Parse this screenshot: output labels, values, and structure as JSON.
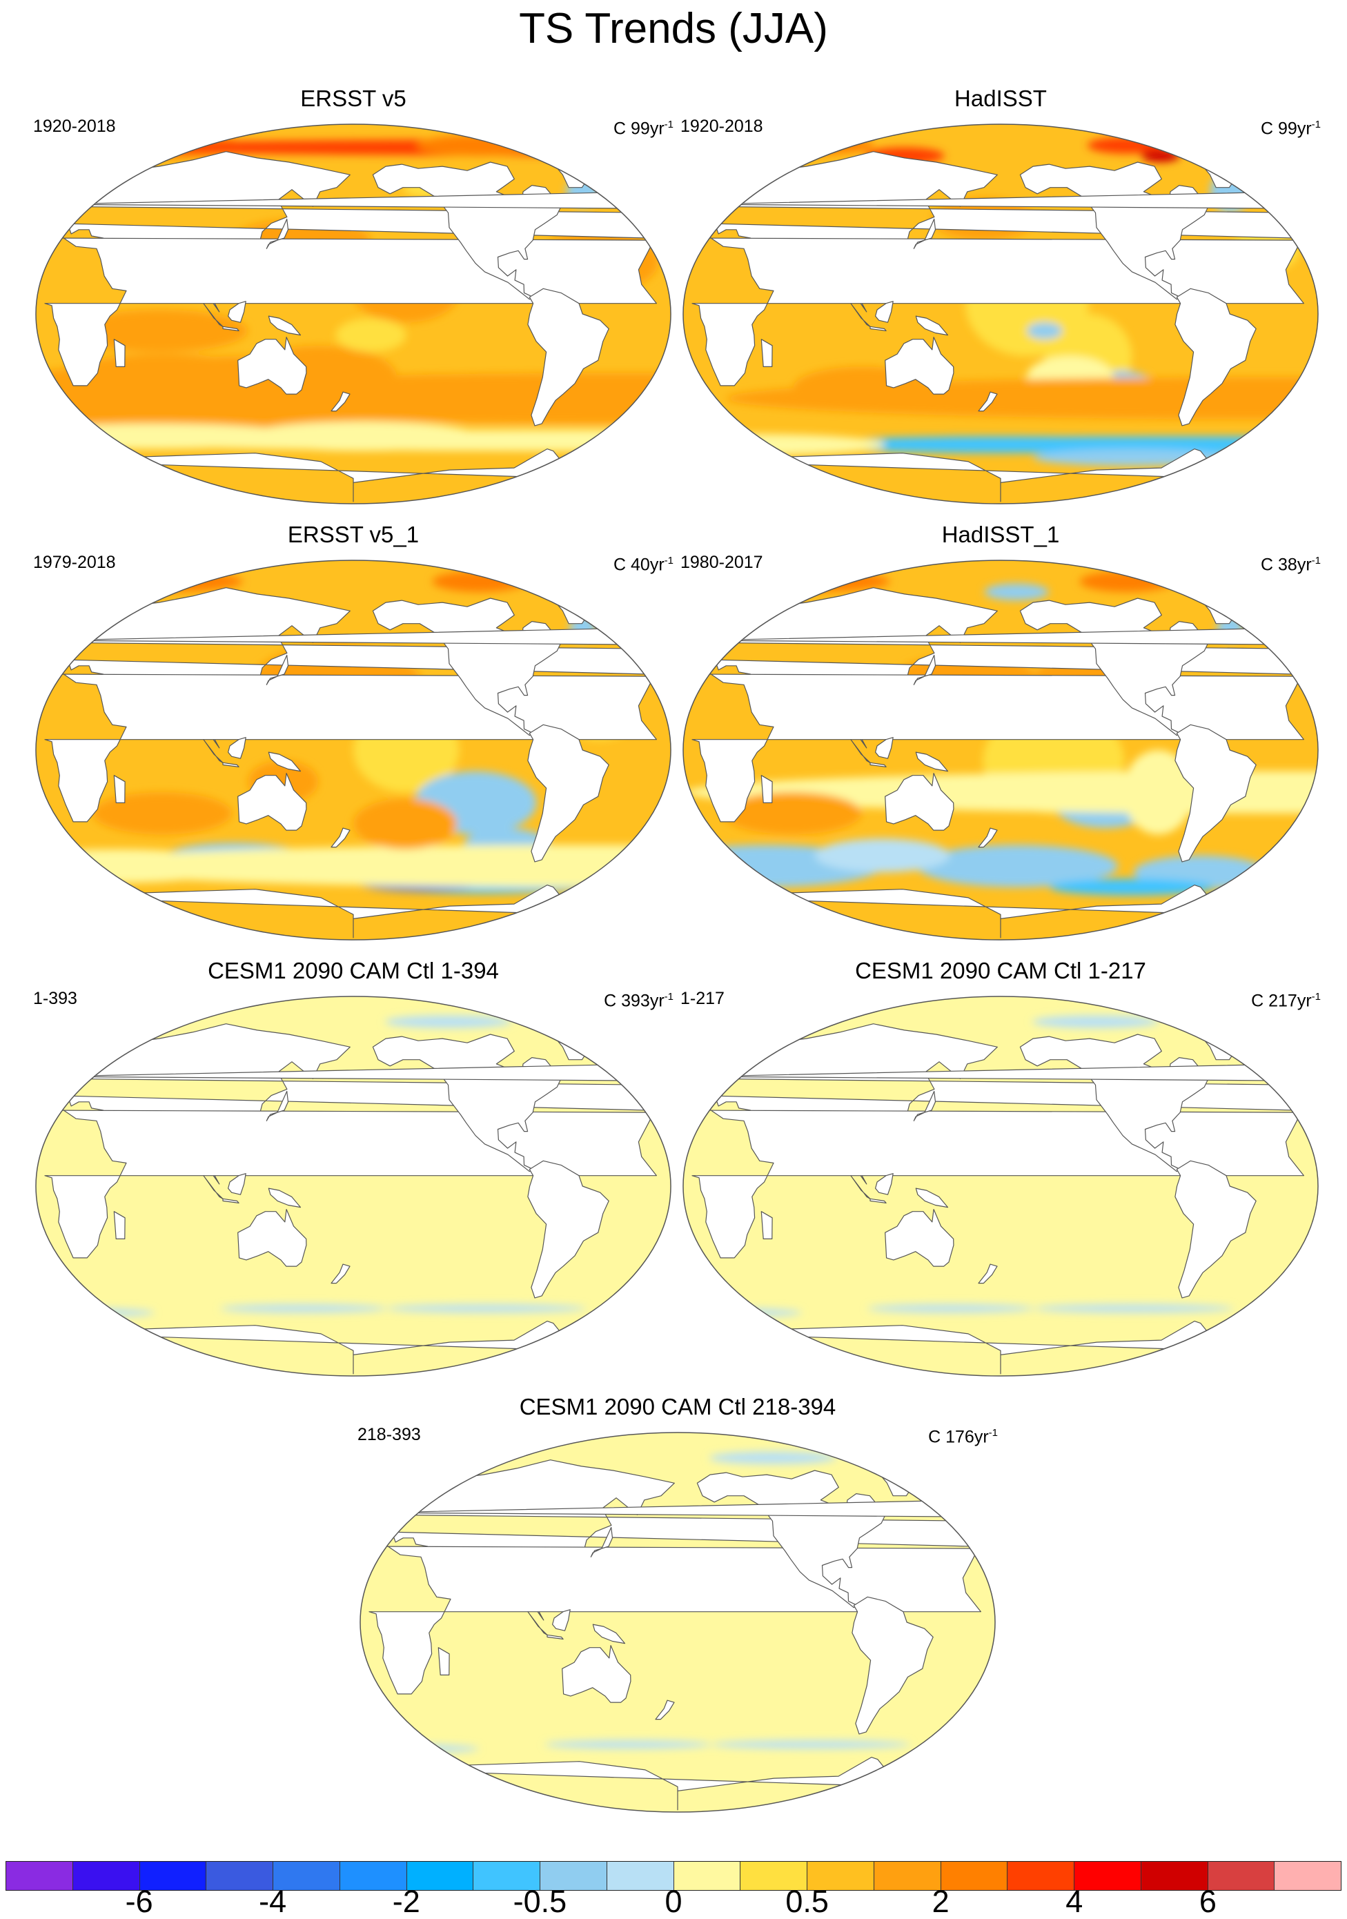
{
  "title": "TS Trends (JJA)",
  "panels": [
    {
      "title": "ERSST v5",
      "period": "1920-2018",
      "units_prefix": "C",
      "years": "99yr",
      "sup": "-1",
      "field": "ersst_full"
    },
    {
      "title": "HadISST",
      "period": "1920-2018",
      "units_prefix": "C",
      "years": "99yr",
      "sup": "-1",
      "field": "hadisst_full"
    },
    {
      "title": "ERSST v5_1",
      "period": "1979-2018",
      "units_prefix": "C",
      "years": "40yr",
      "sup": "-1",
      "field": "ersst_recent"
    },
    {
      "title": "HadISST_1",
      "period": "1980-2017",
      "units_prefix": "C",
      "years": "38yr",
      "sup": "-1",
      "field": "hadisst_recent"
    },
    {
      "title": "CESM1 2090 CAM Ctl 1-394",
      "period": "1-393",
      "units_prefix": "C",
      "years": "393yr",
      "sup": "-1",
      "field": "ctl"
    },
    {
      "title": "CESM1 2090 CAM Ctl 1-217",
      "period": "1-217",
      "units_prefix": "C",
      "years": "217yr",
      "sup": "-1",
      "field": "ctl"
    },
    {
      "title": "CESM1 2090 CAM Ctl 218-394",
      "period": "218-393",
      "units_prefix": "C",
      "years": "176yr",
      "sup": "-1",
      "field": "ctl"
    }
  ],
  "colorbar": {
    "colors": [
      "#8a2be2",
      "#3a10f0",
      "#1020ff",
      "#3a5ae0",
      "#2f78f0",
      "#1e90ff",
      "#00b0ff",
      "#40c4ff",
      "#90cdf0",
      "#b8e0f5",
      "#fff9a0",
      "#ffe040",
      "#ffc020",
      "#ffa010",
      "#ff8000",
      "#ff4000",
      "#ff0000",
      "#d00000",
      "#d84040",
      "#ffb0b0"
    ],
    "labels": [
      {
        "text": "-6",
        "boundary": 2
      },
      {
        "text": "-4",
        "boundary": 4
      },
      {
        "text": "-2",
        "boundary": 6
      },
      {
        "text": "-0.5",
        "boundary": 8
      },
      {
        "text": "0",
        "boundary": 10
      },
      {
        "text": "0.5",
        "boundary": 12
      },
      {
        "text": "2",
        "boundary": 14
      },
      {
        "text": "4",
        "boundary": 16
      },
      {
        "text": "6",
        "boundary": 18
      }
    ]
  }
}
